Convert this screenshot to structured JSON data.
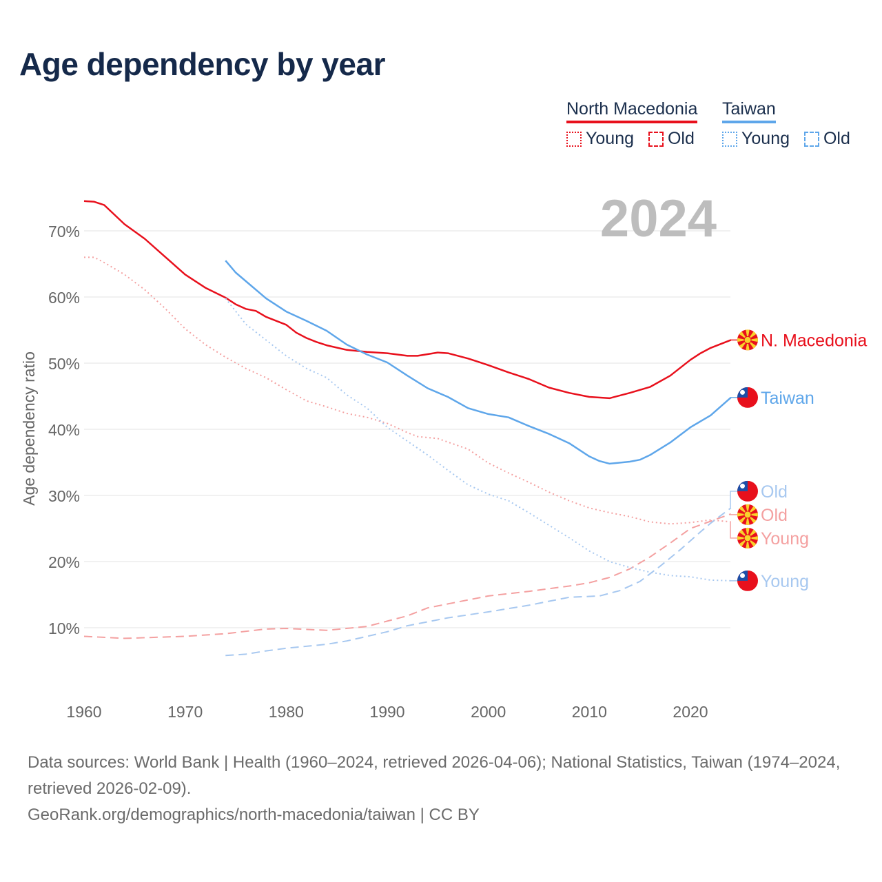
{
  "title": "Age dependency by year",
  "legend": {
    "groups": [
      {
        "name": "North Macedonia",
        "color": "#e8101c",
        "items": [
          {
            "label": "Young",
            "style": "dotted"
          },
          {
            "label": "Old",
            "style": "dashed"
          }
        ]
      },
      {
        "name": "Taiwan",
        "color": "#5ea6ea",
        "items": [
          {
            "label": "Young",
            "style": "dotted"
          },
          {
            "label": "Old",
            "style": "dashed"
          }
        ]
      }
    ]
  },
  "footer": {
    "line1": "Data sources: World Bank | Health (1960–2024, retrieved 2026-04-06); National Statistics, Taiwan (1974–2024, retrieved 2026-02-09).",
    "line2": "GeoRank.org/demographics/north-macedonia/taiwan | CC BY"
  },
  "chart_data": {
    "type": "line",
    "title": "Age dependency by year",
    "year_watermark": "2024",
    "xlabel": "",
    "ylabel": "Age dependency ratio",
    "xlim": [
      1960,
      2024
    ],
    "ylim": [
      0,
      77
    ],
    "xticks": [
      1960,
      1970,
      1980,
      1990,
      2000,
      2010,
      2020
    ],
    "xtick_labels": [
      "1960",
      "1970",
      "1980",
      "1990",
      "2000",
      "2010",
      "2020"
    ],
    "yticks": [
      10,
      20,
      30,
      40,
      50,
      60,
      70
    ],
    "ytick_labels": [
      "10%",
      "20%",
      "30%",
      "40%",
      "50%",
      "60%",
      "70%"
    ],
    "grid": true,
    "legend_position": "top-right",
    "series": [
      {
        "name": "North Macedonia",
        "label": "N. Macedonia",
        "country": "mk",
        "style": "solid",
        "color": "#e8101c",
        "points": [
          [
            1960,
            74.5
          ],
          [
            1961,
            74.4
          ],
          [
            1962,
            73.9
          ],
          [
            1964,
            71.0
          ],
          [
            1966,
            68.8
          ],
          [
            1968,
            66.1
          ],
          [
            1970,
            63.4
          ],
          [
            1972,
            61.4
          ],
          [
            1974,
            59.9
          ],
          [
            1975,
            58.9
          ],
          [
            1976,
            58.2
          ],
          [
            1977,
            57.9
          ],
          [
            1978,
            57.0
          ],
          [
            1980,
            55.8
          ],
          [
            1981,
            54.6
          ],
          [
            1982,
            53.8
          ],
          [
            1983,
            53.2
          ],
          [
            1984,
            52.7
          ],
          [
            1986,
            52.0
          ],
          [
            1988,
            51.7
          ],
          [
            1990,
            51.5
          ],
          [
            1992,
            51.1
          ],
          [
            1993,
            51.1
          ],
          [
            1995,
            51.6
          ],
          [
            1996,
            51.5
          ],
          [
            1998,
            50.7
          ],
          [
            1999,
            50.2
          ],
          [
            2000,
            49.7
          ],
          [
            2002,
            48.6
          ],
          [
            2004,
            47.6
          ],
          [
            2006,
            46.3
          ],
          [
            2008,
            45.5
          ],
          [
            2010,
            44.9
          ],
          [
            2012,
            44.7
          ],
          [
            2014,
            45.5
          ],
          [
            2016,
            46.4
          ],
          [
            2018,
            48.1
          ],
          [
            2020,
            50.5
          ],
          [
            2021,
            51.5
          ],
          [
            2022,
            52.3
          ],
          [
            2024,
            53.5
          ]
        ]
      },
      {
        "name": "Taiwan",
        "label": "Taiwan",
        "country": "tw",
        "style": "solid",
        "color": "#5ea6ea",
        "points": [
          [
            1974,
            65.5
          ],
          [
            1975,
            63.7
          ],
          [
            1976,
            62.4
          ],
          [
            1978,
            59.8
          ],
          [
            1980,
            57.8
          ],
          [
            1982,
            56.4
          ],
          [
            1984,
            54.9
          ],
          [
            1986,
            52.8
          ],
          [
            1988,
            51.3
          ],
          [
            1990,
            50.1
          ],
          [
            1992,
            48.1
          ],
          [
            1994,
            46.2
          ],
          [
            1996,
            44.9
          ],
          [
            1998,
            43.2
          ],
          [
            2000,
            42.3
          ],
          [
            2002,
            41.8
          ],
          [
            2004,
            40.5
          ],
          [
            2006,
            39.3
          ],
          [
            2008,
            37.9
          ],
          [
            2010,
            35.9
          ],
          [
            2011,
            35.2
          ],
          [
            2012,
            34.8
          ],
          [
            2014,
            35.1
          ],
          [
            2015,
            35.4
          ],
          [
            2016,
            36.1
          ],
          [
            2018,
            38.0
          ],
          [
            2020,
            40.3
          ],
          [
            2022,
            42.1
          ],
          [
            2024,
            44.8
          ]
        ]
      },
      {
        "name": "North Macedonia Young",
        "label": "Young",
        "country": "mk",
        "style": "dotted",
        "color": "#f4a0a0",
        "points": [
          [
            1960,
            66.0
          ],
          [
            1961,
            66.0
          ],
          [
            1962,
            65.2
          ],
          [
            1964,
            63.4
          ],
          [
            1966,
            61.1
          ],
          [
            1968,
            58.3
          ],
          [
            1970,
            55.2
          ],
          [
            1972,
            52.8
          ],
          [
            1974,
            50.9
          ],
          [
            1976,
            49.2
          ],
          [
            1978,
            47.8
          ],
          [
            1980,
            46.0
          ],
          [
            1982,
            44.3
          ],
          [
            1984,
            43.4
          ],
          [
            1986,
            42.4
          ],
          [
            1988,
            41.8
          ],
          [
            1990,
            40.9
          ],
          [
            1992,
            39.5
          ],
          [
            1993,
            38.9
          ],
          [
            1995,
            38.6
          ],
          [
            1998,
            37.0
          ],
          [
            2000,
            34.9
          ],
          [
            2002,
            33.4
          ],
          [
            2004,
            32.0
          ],
          [
            2006,
            30.5
          ],
          [
            2008,
            29.2
          ],
          [
            2010,
            28.1
          ],
          [
            2012,
            27.4
          ],
          [
            2014,
            26.8
          ],
          [
            2016,
            26.0
          ],
          [
            2018,
            25.7
          ],
          [
            2020,
            25.9
          ],
          [
            2022,
            26.3
          ],
          [
            2024,
            26.0
          ]
        ]
      },
      {
        "name": "North Macedonia Old",
        "label": "Old",
        "country": "mk",
        "style": "dashed",
        "color": "#f4a0a0",
        "points": [
          [
            1960,
            8.7
          ],
          [
            1964,
            8.4
          ],
          [
            1970,
            8.7
          ],
          [
            1974,
            9.1
          ],
          [
            1978,
            9.8
          ],
          [
            1980,
            9.9
          ],
          [
            1984,
            9.6
          ],
          [
            1988,
            10.2
          ],
          [
            1990,
            11.0
          ],
          [
            1992,
            11.8
          ],
          [
            1994,
            13.0
          ],
          [
            1996,
            13.6
          ],
          [
            2000,
            14.8
          ],
          [
            2004,
            15.5
          ],
          [
            2008,
            16.3
          ],
          [
            2010,
            16.8
          ],
          [
            2012,
            17.6
          ],
          [
            2014,
            18.9
          ],
          [
            2016,
            20.7
          ],
          [
            2018,
            22.8
          ],
          [
            2020,
            25.0
          ],
          [
            2022,
            26.1
          ],
          [
            2024,
            27.2
          ]
        ]
      },
      {
        "name": "Taiwan Young",
        "label": "Young",
        "country": "tw",
        "style": "dotted",
        "color": "#a7c8f0",
        "points": [
          [
            1974,
            59.8
          ],
          [
            1976,
            55.9
          ],
          [
            1978,
            53.5
          ],
          [
            1980,
            51.1
          ],
          [
            1982,
            49.2
          ],
          [
            1984,
            47.8
          ],
          [
            1986,
            45.2
          ],
          [
            1988,
            43.2
          ],
          [
            1990,
            40.3
          ],
          [
            1992,
            38.2
          ],
          [
            1994,
            36.1
          ],
          [
            1996,
            33.8
          ],
          [
            1998,
            31.6
          ],
          [
            2000,
            30.2
          ],
          [
            2002,
            29.2
          ],
          [
            2004,
            27.4
          ],
          [
            2006,
            25.5
          ],
          [
            2008,
            23.6
          ],
          [
            2010,
            21.6
          ],
          [
            2012,
            20.0
          ],
          [
            2014,
            19.1
          ],
          [
            2016,
            18.4
          ],
          [
            2018,
            17.9
          ],
          [
            2020,
            17.7
          ],
          [
            2022,
            17.2
          ],
          [
            2024,
            17.1
          ]
        ]
      },
      {
        "name": "Taiwan Old",
        "label": "Old",
        "country": "tw",
        "style": "dashed",
        "color": "#a7c8f0",
        "points": [
          [
            1974,
            5.8
          ],
          [
            1976,
            6.0
          ],
          [
            1978,
            6.5
          ],
          [
            1980,
            6.9
          ],
          [
            1984,
            7.5
          ],
          [
            1986,
            8.0
          ],
          [
            1988,
            8.7
          ],
          [
            1990,
            9.4
          ],
          [
            1992,
            10.3
          ],
          [
            1994,
            10.9
          ],
          [
            1996,
            11.5
          ],
          [
            2000,
            12.4
          ],
          [
            2004,
            13.4
          ],
          [
            2008,
            14.6
          ],
          [
            2011,
            14.8
          ],
          [
            2013,
            15.6
          ],
          [
            2015,
            17.0
          ],
          [
            2017,
            19.3
          ],
          [
            2019,
            21.8
          ],
          [
            2021,
            24.5
          ],
          [
            2022,
            25.8
          ],
          [
            2024,
            28.1
          ]
        ]
      }
    ]
  }
}
